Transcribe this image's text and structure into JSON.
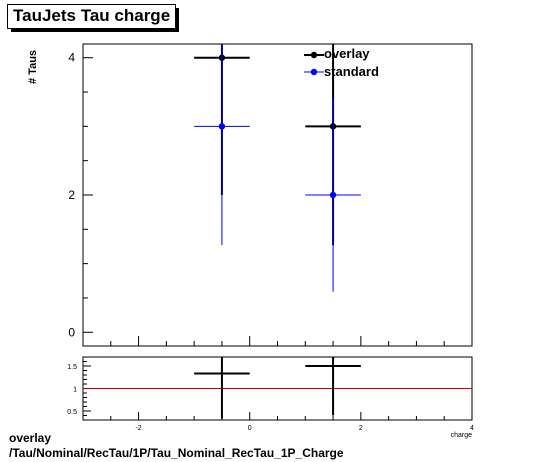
{
  "title": "TauJets Tau charge",
  "footer": {
    "line1": "overlay",
    "line2": "/Tau/Nominal/RecTau/1P/Tau_Nominal_RecTau_1P_Charge"
  },
  "colors": {
    "overlay": "#000000",
    "standard": "#0000ff",
    "ratio_line": "#cc0000"
  },
  "chart_data": [
    {
      "type": "scatter",
      "ylabel": "# Taus",
      "xlim": [
        -3,
        4
      ],
      "ylim": [
        -0.2,
        4.2
      ],
      "y_ticks": [
        0,
        2,
        4
      ],
      "legend_position": "top-right",
      "series": [
        {
          "name": "overlay",
          "color": "#000000",
          "points": [
            {
              "x": -0.5,
              "y": 4,
              "xerr": 0.5,
              "yerr": 2.0
            },
            {
              "x": 1.5,
              "y": 3,
              "xerr": 0.5,
              "yerr": 1.73
            }
          ]
        },
        {
          "name": "standard",
          "color": "#0000ff",
          "points": [
            {
              "x": -0.5,
              "y": 3,
              "xerr": 0.5,
              "yerr": 1.73
            },
            {
              "x": 1.5,
              "y": 2,
              "xerr": 0.5,
              "yerr": 1.41
            }
          ]
        }
      ]
    },
    {
      "type": "scatter",
      "xlabel": "charge",
      "xlim": [
        -3,
        4
      ],
      "ylim": [
        0.3,
        1.7
      ],
      "x_ticks": [
        -2,
        0,
        2,
        4
      ],
      "y_ticks": [
        0.5,
        1,
        1.5
      ],
      "reference_line": 1,
      "points": [
        {
          "x": -0.5,
          "y": 1.333,
          "xerr": 0.5,
          "yerr": 1.0
        },
        {
          "x": 1.5,
          "y": 1.5,
          "xerr": 0.5,
          "yerr": 1.1
        }
      ]
    }
  ]
}
